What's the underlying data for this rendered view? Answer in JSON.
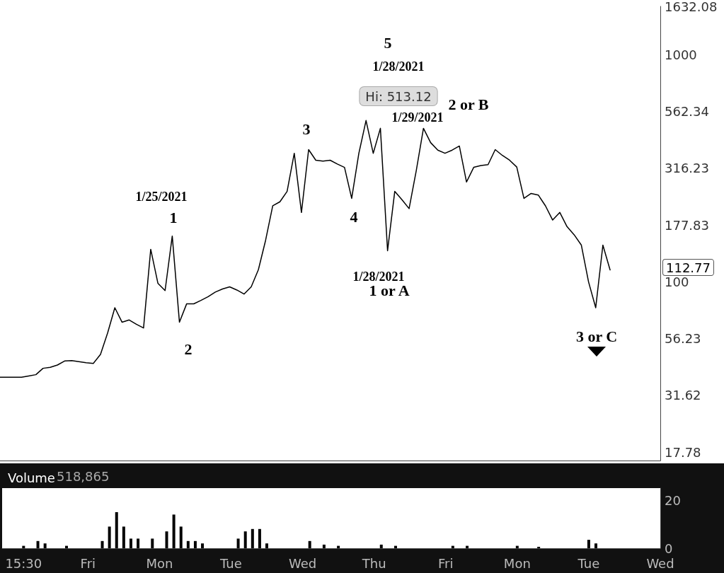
{
  "chart_data": [
    {
      "type": "line",
      "color": "#000000",
      "log": "y",
      "line_style": "solid",
      "tick_labels": "y",
      "categories": [
        null,
        null,
        null,
        null,
        null,
        null,
        null,
        null,
        null,
        null,
        null,
        null,
        null,
        null,
        null,
        null,
        null,
        null,
        null,
        null,
        null,
        null,
        null,
        null,
        null,
        null,
        null,
        null,
        null,
        null,
        null,
        null,
        null,
        null,
        null,
        null,
        null,
        null,
        null,
        null,
        null,
        null,
        null,
        null,
        null,
        null,
        null,
        null,
        null,
        null,
        null,
        null,
        null,
        null,
        null,
        null,
        null,
        null,
        null,
        null,
        null,
        null,
        null,
        null,
        null,
        null,
        null,
        null,
        null,
        null,
        null,
        null,
        null,
        null,
        null,
        null,
        null,
        null,
        null,
        null,
        null,
        null,
        null,
        null,
        null,
        null,
        null,
        null,
        null,
        null,
        null,
        null,
        null
      ],
      "values": [
        38,
        38,
        38,
        38,
        38.5,
        39,
        41.6,
        42,
        43,
        44.8,
        45,
        44.5,
        44,
        43.7,
        47.9,
        59.6,
        76.9,
        66.4,
        67.9,
        65,
        62.6,
        139,
        98.5,
        91.5,
        159,
        66.4,
        79.9,
        80,
        82.8,
        86,
        90.1,
        93,
        95,
        92,
        88.3,
        95,
        113,
        152,
        216,
        225,
        250,
        368,
        202,
        382,
        343,
        340,
        343,
        330,
        319,
        233,
        368,
        513.12,
        368,
        474,
        137,
        250,
        230,
        210,
        309,
        474,
        410,
        380,
        368,
        380,
        396,
        275,
        319,
        325,
        328,
        382,
        360,
        343,
        320,
        233,
        245,
        241,
        216,
        187,
        202,
        175,
        161,
        145,
        100,
        76.9,
        145,
        112.77,
        null,
        null,
        null,
        null,
        null,
        null,
        null
      ],
      "ylim": [
        16.33,
        1632.08
      ],
      "yticks": [
        17.78,
        31.62,
        56.23,
        100,
        177.83,
        316.23,
        562.34,
        1000,
        1632.08
      ],
      "annotations": [
        "Hi: 513.12",
        "112.77",
        "1/25/2021",
        "1",
        "2",
        "3",
        "4",
        "5",
        "1/28/2021",
        "2 or B",
        "1/29/2021",
        "1/28/2021",
        "1 or A",
        "3 or C"
      ]
    },
    {
      "type": "bar",
      "title": "Volume",
      "color": "#000000",
      "categories": [
        null,
        null,
        null,
        "15:30",
        null,
        null,
        null,
        null,
        null,
        null,
        null,
        null,
        "Fri",
        null,
        null,
        null,
        null,
        null,
        null,
        null,
        null,
        null,
        "Mon",
        null,
        null,
        null,
        null,
        null,
        null,
        null,
        null,
        null,
        "Tue",
        null,
        null,
        null,
        null,
        null,
        null,
        null,
        null,
        null,
        "Wed",
        null,
        null,
        null,
        null,
        null,
        null,
        null,
        null,
        null,
        "Thu",
        null,
        null,
        null,
        null,
        null,
        null,
        null,
        null,
        null,
        "Fri",
        null,
        null,
        null,
        null,
        null,
        null,
        null,
        null,
        null,
        "Mon",
        null,
        null,
        null,
        null,
        null,
        null,
        null,
        null,
        null,
        "Tue",
        null,
        null,
        null,
        null,
        null,
        null,
        null,
        null,
        null,
        "Wed"
      ],
      "values": [
        null,
        null,
        null,
        1,
        null,
        3,
        2,
        null,
        null,
        1,
        null,
        null,
        null,
        null,
        3,
        9,
        15,
        9,
        4,
        4,
        null,
        4,
        null,
        7,
        14,
        9,
        3,
        3,
        2,
        null,
        null,
        null,
        null,
        4,
        7,
        8,
        8,
        2,
        null,
        null,
        null,
        null,
        null,
        3,
        null,
        1.5,
        null,
        1,
        null,
        null,
        null,
        null,
        null,
        1.5,
        null,
        1,
        null,
        null,
        null,
        null,
        null,
        null,
        null,
        1,
        null,
        1,
        null,
        null,
        null,
        null,
        null,
        null,
        1,
        null,
        null,
        0.6,
        null,
        null,
        null,
        null,
        null,
        null,
        3.5,
        2,
        null,
        null,
        null,
        null,
        null,
        null,
        null,
        null,
        null
      ],
      "ylim": [
        0,
        25
      ],
      "yticks": [
        0,
        20
      ],
      "annotations": [
        "518,865"
      ]
    }
  ]
}
